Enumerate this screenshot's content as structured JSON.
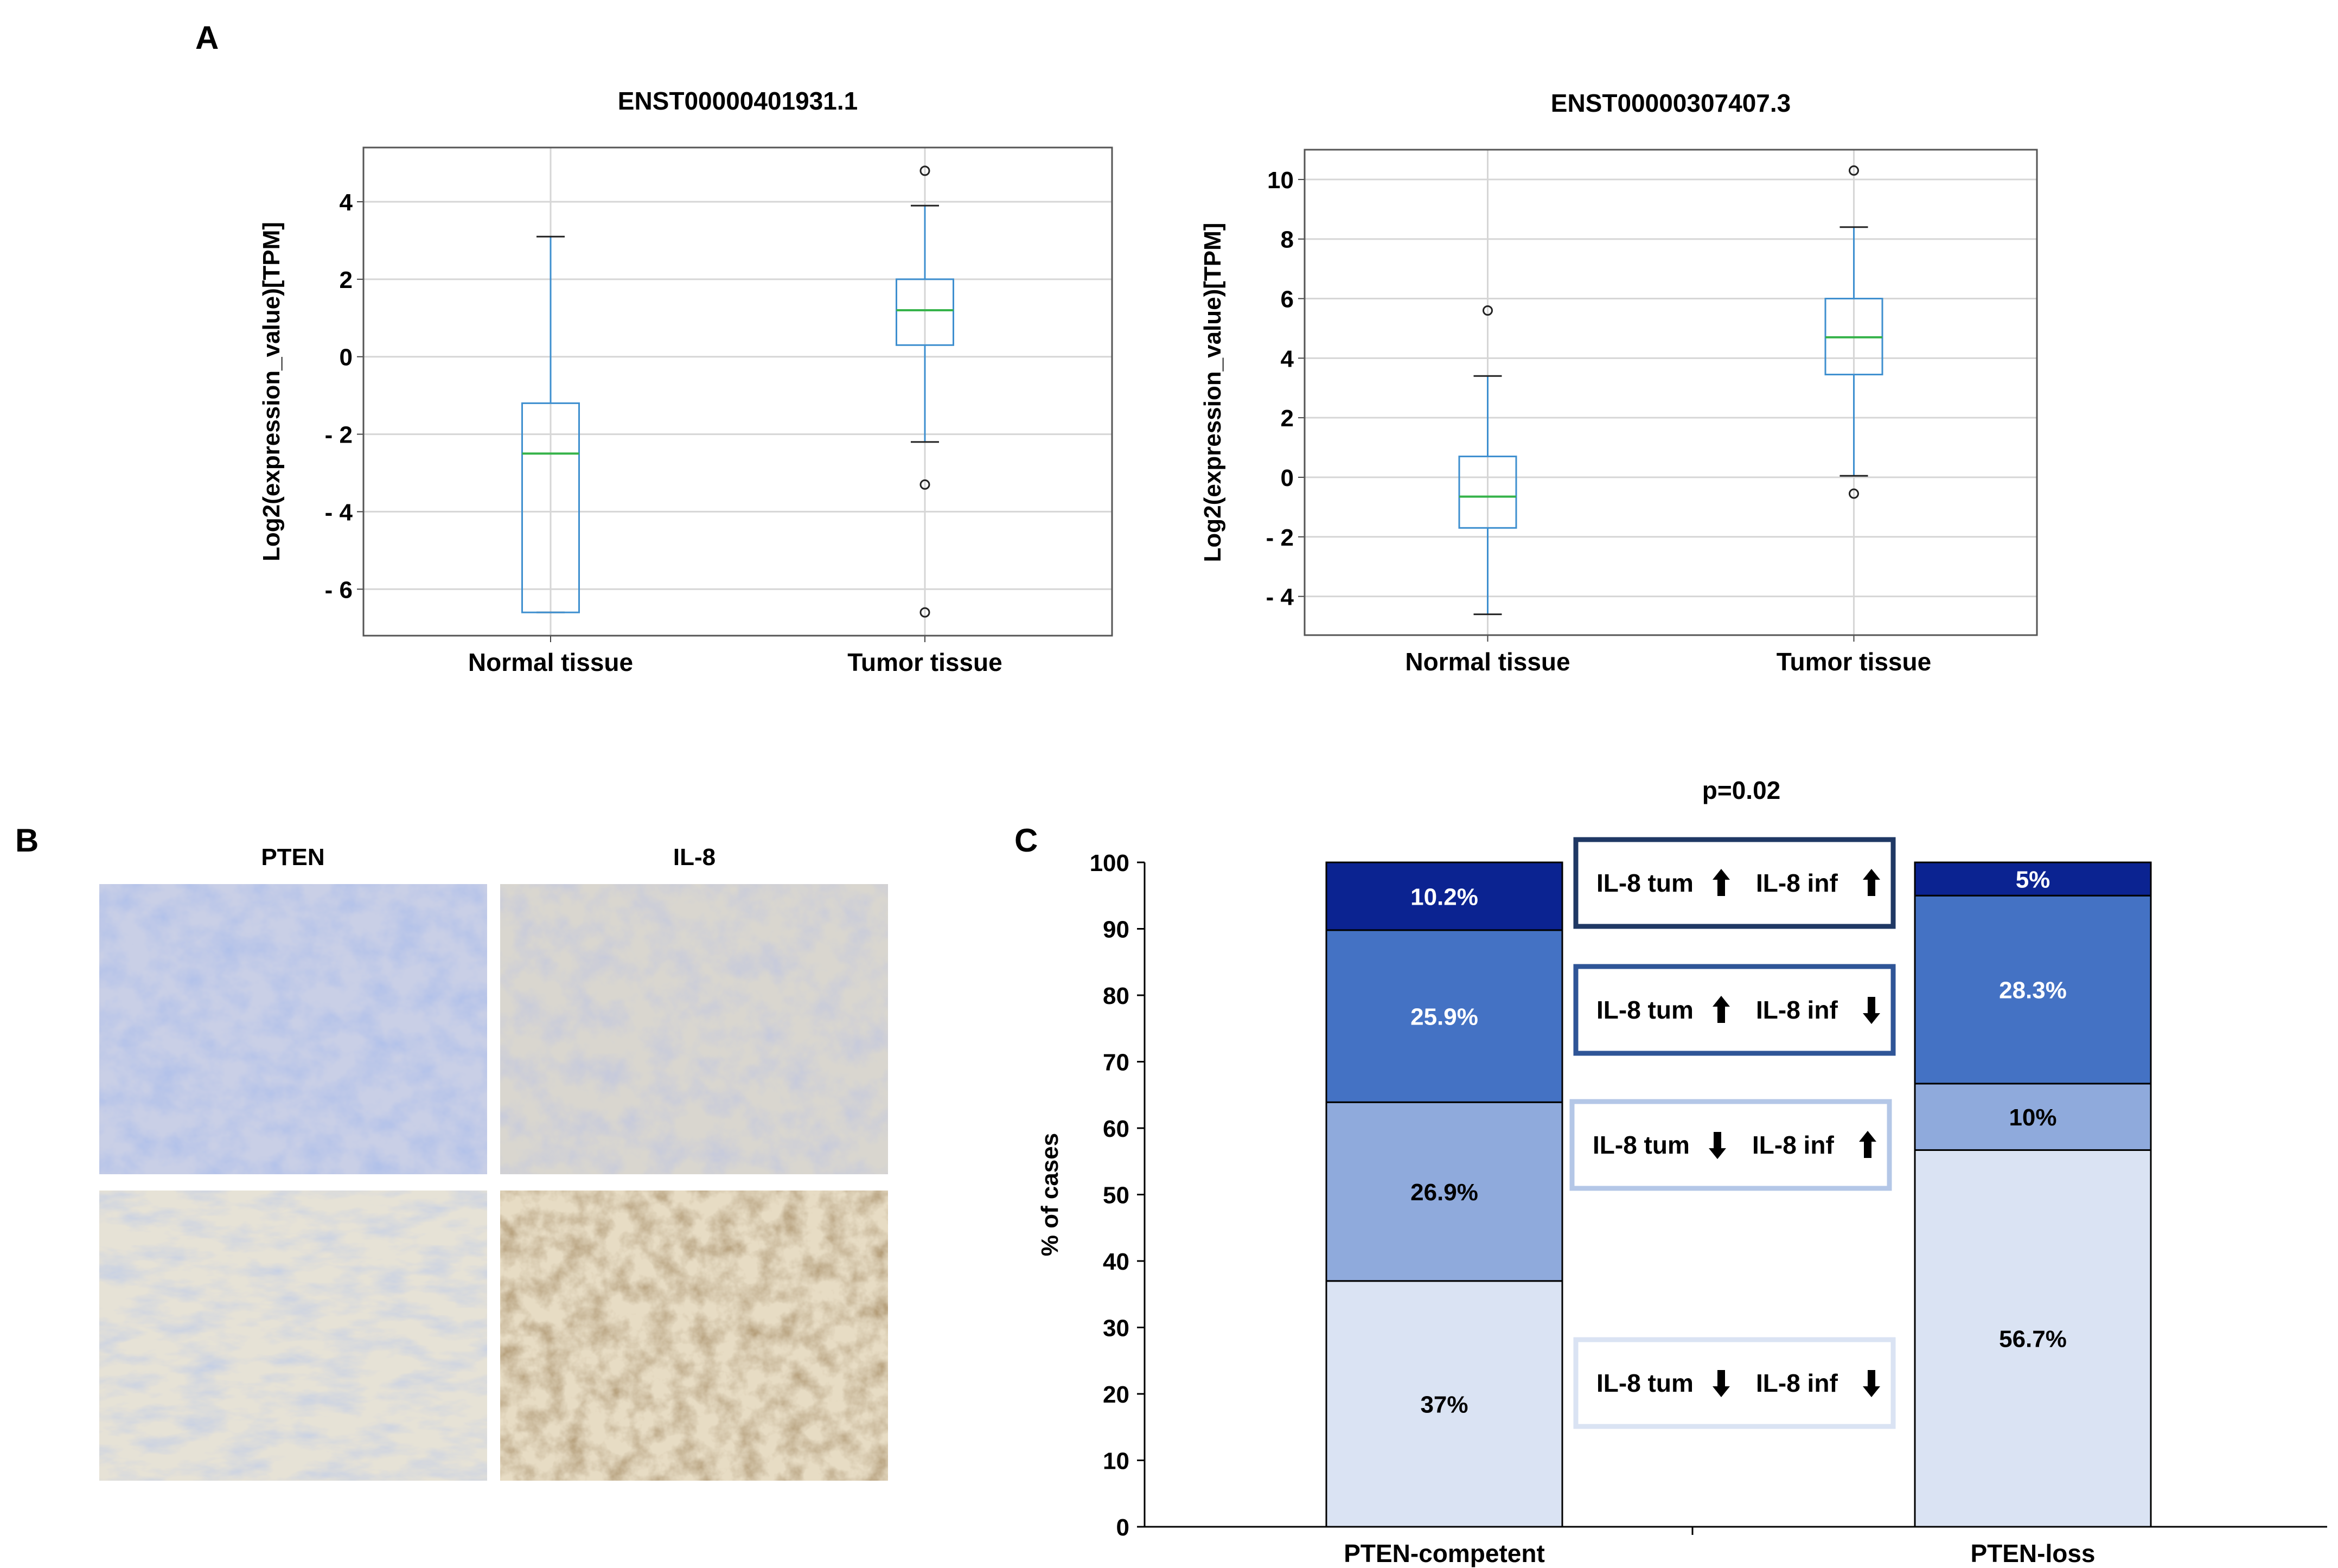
{
  "panel_labels": {
    "a": "A",
    "b": "B",
    "c": "C"
  },
  "chart_data": [
    {
      "type": "box",
      "panel": "A",
      "title": "ENST00000401931.1",
      "ylabel": "Log2(expression_value)[TPM]",
      "xlabel": "",
      "ylim": [
        -7.2,
        5.4
      ],
      "yticks": [
        4,
        2,
        0,
        -2,
        -4,
        -6
      ],
      "ytick_labels": [
        "4",
        "2",
        "0",
        "- 2",
        "- 4",
        "- 6"
      ],
      "grid": true,
      "categories": [
        "Normal tissue",
        "Tumor tissue"
      ],
      "boxes": [
        {
          "name": "Normal tissue",
          "whisker_low": -6.6,
          "q1": -6.6,
          "median": -2.5,
          "q3": -1.2,
          "whisker_high": 3.1,
          "outliers": []
        },
        {
          "name": "Tumor tissue",
          "whisker_low": -2.2,
          "q1": 0.3,
          "median": 1.2,
          "q3": 2.0,
          "whisker_high": 3.9,
          "outliers": [
            4.8,
            -3.3,
            -6.6
          ]
        }
      ]
    },
    {
      "type": "box",
      "panel": "A",
      "title": "ENST00000307407.3",
      "ylabel": "Log2(expression_value)[TPM]",
      "xlabel": "",
      "ylim": [
        -5.3,
        11.0
      ],
      "yticks": [
        10,
        8,
        6,
        4,
        2,
        0,
        -2,
        -4
      ],
      "ytick_labels": [
        "10",
        "8",
        "6",
        "4",
        "2",
        "0",
        "- 2",
        "- 4"
      ],
      "grid": true,
      "categories": [
        "Normal tissue",
        "Tumor tissue"
      ],
      "boxes": [
        {
          "name": "Normal tissue",
          "whisker_low": -4.6,
          "q1": -1.7,
          "median": -0.65,
          "q3": 0.7,
          "whisker_high": 3.4,
          "outliers": [
            5.6
          ]
        },
        {
          "name": "Tumor tissue",
          "whisker_low": 0.05,
          "q1": 3.45,
          "median": 4.7,
          "q3": 6.0,
          "whisker_high": 8.4,
          "outliers": [
            10.3,
            -0.55
          ]
        }
      ]
    },
    {
      "type": "stacked-bar",
      "panel": "C",
      "title": "p=0.02",
      "ylabel": "% of cases",
      "xlabel": "",
      "ylim": [
        0,
        100
      ],
      "yticks": [
        0,
        10,
        20,
        30,
        40,
        50,
        60,
        70,
        80,
        90,
        100
      ],
      "grid": false,
      "categories": [
        "PTEN-competent",
        "PTEN-loss"
      ],
      "series": [
        {
          "name": "IL-8 tum ↓ IL-8 inf ↓",
          "color": "#dae3f3",
          "values": [
            37,
            56.7
          ],
          "labels": [
            "37%",
            "56.7%"
          ]
        },
        {
          "name": "IL-8 tum ↓ IL-8 inf ↑",
          "color": "#8faadc",
          "values": [
            26.9,
            10
          ],
          "labels": [
            "26.9%",
            "10%"
          ]
        },
        {
          "name": "IL-8 tum ↑ IL-8 inf ↓",
          "color": "#4472c4",
          "values": [
            25.9,
            28.3
          ],
          "labels": [
            "25.9%",
            "28.3%"
          ]
        },
        {
          "name": "IL-8 tum ↑ IL-8 inf ↑",
          "color": "#0b2391",
          "values": [
            10.2,
            5
          ],
          "labels": [
            "10.2%",
            "5%"
          ]
        }
      ],
      "legend": [
        {
          "tum": "IL-8 tum",
          "tum_dir": "up",
          "inf": "IL-8 inf",
          "inf_dir": "up",
          "border": "#1f3864"
        },
        {
          "tum": "IL-8 tum",
          "tum_dir": "up",
          "inf": "IL-8 inf",
          "inf_dir": "down",
          "border": "#2f5597"
        },
        {
          "tum": "IL-8 tum",
          "tum_dir": "down",
          "inf": "IL-8 inf",
          "inf_dir": "up",
          "border": "#b4c7e7"
        },
        {
          "tum": "IL-8 tum",
          "tum_dir": "down",
          "inf": "IL-8 inf",
          "inf_dir": "down",
          "border": "#dae3f3"
        }
      ]
    }
  ],
  "panel_b": {
    "col_titles": [
      "PTEN",
      "IL-8"
    ],
    "images": [
      {
        "name": "pten-normal-ihc",
        "stain": "hematoxylin-blue"
      },
      {
        "name": "il8-normal-ihc",
        "stain": "light-brown"
      },
      {
        "name": "pten-loss-ihc",
        "stain": "pale-brown"
      },
      {
        "name": "il8-high-ihc",
        "stain": "dark-brown"
      }
    ]
  }
}
